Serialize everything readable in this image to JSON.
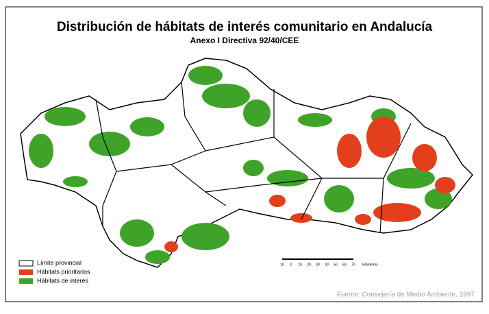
{
  "header": {
    "title": "Distribución de hábitats de interés comunitario en Andalucía",
    "subtitle": "Anexo I Directiva 92/40/CEE"
  },
  "legend": [
    "Límite provincial",
    "Hábitats prioritarios",
    "Hábitats de interés"
  ],
  "scale": {
    "ticks": [
      "10",
      "0",
      "10",
      "20",
      "30",
      "40",
      "50",
      "60",
      "70"
    ],
    "unit": "kilómetros"
  },
  "source": "Fuente: Consejería de Medio Ambiente. 1997"
}
